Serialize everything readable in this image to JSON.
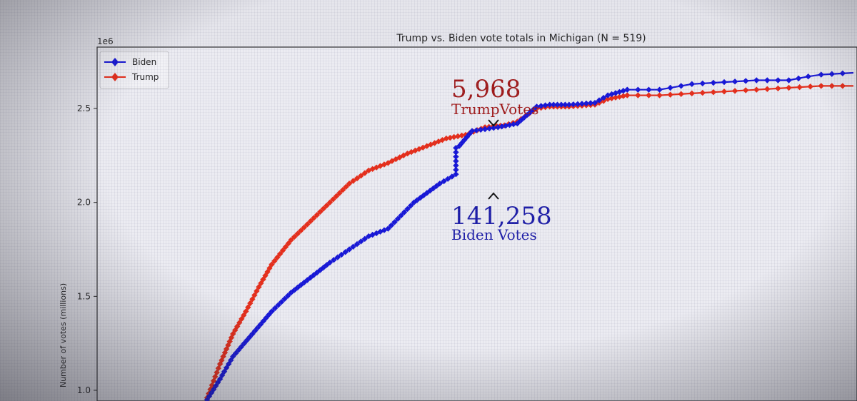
{
  "chart_data": {
    "type": "line",
    "title": "Trump vs. Biden vote totals in Michigan (N = 519)",
    "ylabel": "Number of votes (millions)",
    "y_multiplier_label": "1e6",
    "ylim": [
      0.95,
      2.82
    ],
    "yticks": [
      {
        "value": 1.0,
        "label": "1.0"
      },
      {
        "value": 1.5,
        "label": "1.5"
      },
      {
        "value": 2.0,
        "label": "2.0"
      },
      {
        "value": 2.5,
        "label": "2.5"
      }
    ],
    "grid": false,
    "legend_position": "top-left",
    "series": [
      {
        "name": "Biden",
        "color": "#1515d8",
        "marker": "diamond",
        "x": [
          0.0,
          0.02,
          0.04,
          0.07,
          0.1,
          0.13,
          0.16,
          0.19,
          0.22,
          0.25,
          0.28,
          0.3,
          0.32,
          0.34,
          0.36,
          0.385,
          0.385,
          0.39,
          0.41,
          0.43,
          0.45,
          0.48,
          0.51,
          0.53,
          0.56,
          0.6,
          0.62,
          0.65,
          0.7,
          0.75,
          0.8,
          0.85,
          0.9,
          0.93,
          0.95,
          1.0
        ],
        "y": [
          0.95,
          1.06,
          1.18,
          1.3,
          1.42,
          1.52,
          1.6,
          1.68,
          1.75,
          1.82,
          1.86,
          1.93,
          2.0,
          2.05,
          2.1,
          2.15,
          2.29,
          2.3,
          2.38,
          2.39,
          2.4,
          2.42,
          2.51,
          2.52,
          2.52,
          2.53,
          2.57,
          2.6,
          2.6,
          2.63,
          2.64,
          2.65,
          2.65,
          2.67,
          2.68,
          2.69
        ]
      },
      {
        "name": "Trump",
        "color": "#e82c18",
        "marker": "diamond",
        "x": [
          0.0,
          0.02,
          0.04,
          0.06,
          0.08,
          0.1,
          0.13,
          0.16,
          0.19,
          0.22,
          0.25,
          0.28,
          0.31,
          0.34,
          0.37,
          0.4,
          0.43,
          0.46,
          0.48,
          0.51,
          0.53,
          0.56,
          0.6,
          0.62,
          0.65,
          0.7,
          0.75,
          0.8,
          0.85,
          0.9,
          0.95,
          1.0
        ],
        "y": [
          0.96,
          1.14,
          1.3,
          1.42,
          1.55,
          1.67,
          1.8,
          1.9,
          2.0,
          2.1,
          2.17,
          2.21,
          2.26,
          2.3,
          2.34,
          2.36,
          2.4,
          2.41,
          2.43,
          2.5,
          2.51,
          2.51,
          2.52,
          2.55,
          2.57,
          2.57,
          2.58,
          2.59,
          2.6,
          2.61,
          2.62,
          2.62
        ]
      }
    ],
    "annotations": [
      {
        "number": "5,968",
        "label": "TrumpVotes",
        "color": "#a01818",
        "arrow": "v",
        "x": 0.385,
        "y": 2.35
      },
      {
        "number": "141,258",
        "label": "Biden Votes",
        "color": "#1c1ca8",
        "arrow": "^",
        "x": 0.385,
        "y": 2.15
      }
    ]
  }
}
